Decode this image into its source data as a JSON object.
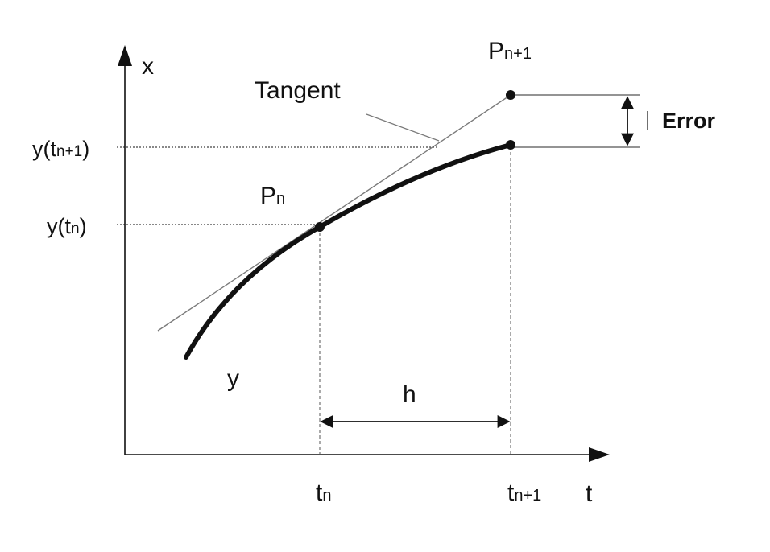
{
  "labels": {
    "x_axis": "x",
    "t_axis": "t",
    "tangent": "Tangent",
    "error": "Error",
    "curve": "y",
    "step": "h",
    "p_next_base": "P",
    "p_next_sub": "n+1",
    "p_curr_base": "P",
    "p_curr_sub": "n",
    "y_next_pre": "y(t",
    "y_next_sub": "n+1",
    "y_next_post": ")",
    "y_curr_pre": "y(t",
    "y_curr_sub": "n",
    "y_curr_post": ")",
    "t_curr_base": "t",
    "t_curr_sub": "n",
    "t_next_base": "t",
    "t_next_sub": "n+1"
  },
  "colors": {
    "ink": "#111111",
    "tangent_line": "#7a7a7a"
  }
}
